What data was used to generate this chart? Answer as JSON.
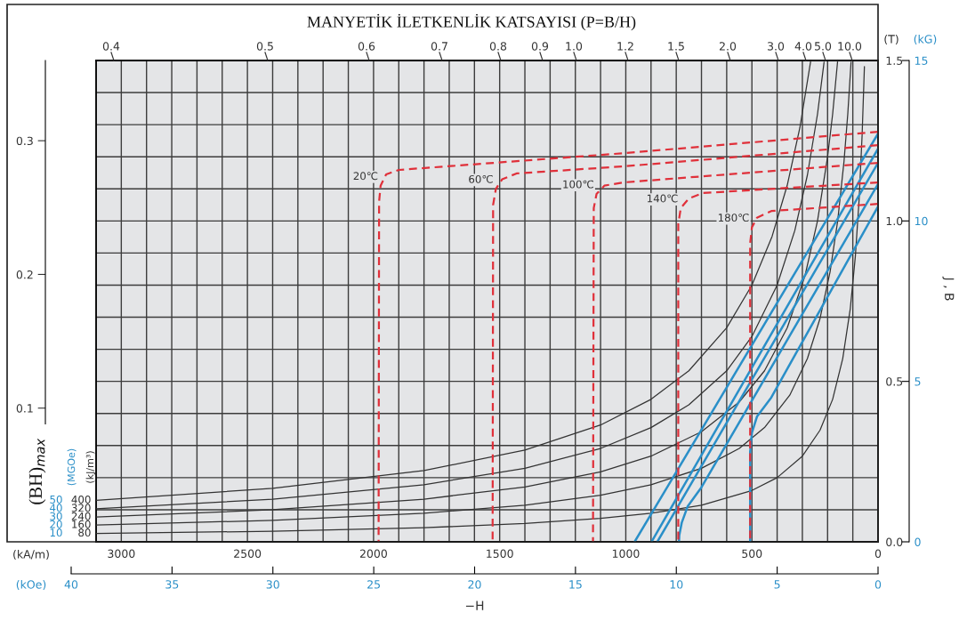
{
  "chart_data": {
    "type": "line",
    "title": "MANYETİK İLETKENLİK KATSAYISI (P=B/H)",
    "xlabel": "−H",
    "y2label": "J , B",
    "x2label": "(kOe)",
    "annotations": [
      "(kA/m)",
      "(T)",
      "(BH)$_{max}$",
      "(MGOe)",
      "(kJ/m³)",
      "(kG)",
      "50",
      "40",
      "30",
      "20",
      "10",
      "0.4",
      "0.5",
      "0.6",
      "0.7",
      "0.8",
      "0.9",
      "1.0",
      "1.2",
      "1.5",
      "2.0",
      "3.0",
      "4.0",
      "5.0",
      "10.0"
    ],
    "xlim": [
      3100,
      0
    ],
    "xticks": [
      {
        "value": 3100,
        "label": null
      },
      3000,
      {
        "value": 2900,
        "label": null
      },
      {
        "value": 2800,
        "label": null
      },
      {
        "value": 2700,
        "label": null
      },
      {
        "value": 2600,
        "label": null
      },
      2500,
      {
        "value": 2400,
        "label": null
      },
      {
        "value": 2300,
        "label": null
      },
      {
        "value": 2200,
        "label": null
      },
      {
        "value": 2100,
        "label": null
      },
      2000,
      {
        "value": 1900,
        "label": null
      },
      {
        "value": 1800,
        "label": null
      },
      {
        "value": 1700,
        "label": null
      },
      {
        "value": 1600,
        "label": null
      },
      1500,
      {
        "value": 1400,
        "label": null
      },
      {
        "value": 1300,
        "label": null
      },
      {
        "value": 1200,
        "label": null
      },
      {
        "value": 1100,
        "label": null
      },
      1000,
      {
        "value": 900,
        "label": null
      },
      {
        "value": 800,
        "label": null
      },
      {
        "value": 700,
        "label": null
      },
      {
        "value": 600,
        "label": null
      },
      500,
      {
        "value": 400,
        "label": null
      },
      {
        "value": 300,
        "label": null
      },
      {
        "value": 200,
        "label": null
      },
      {
        "value": 100,
        "label": null
      },
      0
    ],
    "ylim": [
      0,
      1.5
    ],
    "yticks": [
      {
        "value": 0,
        "label": "0.0"
      },
      {
        "value": 0.1,
        "label": null
      },
      {
        "value": 0.2,
        "label": null
      },
      {
        "value": 0.3,
        "label": null
      },
      {
        "value": 0.4,
        "label": null
      },
      0.5,
      {
        "value": 0.6,
        "label": null
      },
      {
        "value": 0.7,
        "label": null
      },
      {
        "value": 0.8,
        "label": null
      },
      {
        "value": 0.9,
        "label": null
      },
      {
        "value": 1,
        "label": "1.0"
      },
      {
        "value": 1.1,
        "label": null
      },
      {
        "value": 1.2,
        "label": null
      },
      {
        "value": 1.3,
        "label": null
      },
      {
        "value": 1.4,
        "label": null
      },
      1.5
    ],
    "y2lim": [
      0,
      15
    ],
    "y2ticks": [
      0,
      5,
      10,
      15
    ],
    "y3lim": [
      0,
      0.36
    ],
    "y3ticks": [
      0.1,
      0.2,
      0.3
    ],
    "x2lim": [
      40,
      0
    ],
    "x2ticks": [
      40,
      35,
      30,
      25,
      20,
      15,
      10,
      5,
      0
    ],
    "grid": true,
    "line_style": "solid",
    "series": [
      {
        "name": "400",
        "color": "#333333",
        "x": [
          3100,
          2400,
          1800,
          1400,
          1100,
          900,
          750,
          600,
          500,
          420,
          360,
          310,
          267
        ],
        "values": [
          0.129,
          0.167,
          0.222,
          0.286,
          0.364,
          0.444,
          0.533,
          0.667,
          0.8,
          0.952,
          1.111,
          1.29,
          1.498
        ]
      },
      {
        "name": "320",
        "color": "#333333",
        "x": [
          3100,
          2400,
          1800,
          1400,
          1100,
          900,
          750,
          600,
          500,
          400,
          330,
          280,
          240,
          214
        ],
        "values": [
          0.103,
          0.133,
          0.178,
          0.229,
          0.291,
          0.356,
          0.427,
          0.533,
          0.64,
          0.8,
          0.97,
          1.143,
          1.333,
          1.495
        ]
      },
      {
        "name": "240",
        "color": "#333333",
        "x": [
          3100,
          2400,
          1800,
          1400,
          1100,
          900,
          700,
          550,
          450,
          360,
          290,
          240,
          200,
          180,
          160
        ],
        "values": [
          0.077,
          0.1,
          0.133,
          0.171,
          0.218,
          0.267,
          0.343,
          0.436,
          0.533,
          0.667,
          0.828,
          1.0,
          1.2,
          1.333,
          1.5
        ]
      },
      {
        "name": "160",
        "color": "#333333",
        "x": [
          3100,
          2400,
          1800,
          1400,
          1100,
          900,
          700,
          550,
          450,
          350,
          280,
          230,
          190,
          160,
          135,
          120,
          107
        ],
        "values": [
          0.052,
          0.067,
          0.089,
          0.114,
          0.145,
          0.178,
          0.229,
          0.291,
          0.356,
          0.457,
          0.571,
          0.696,
          0.842,
          1.0,
          1.185,
          1.333,
          1.495
        ]
      },
      {
        "name": "80",
        "color": "#333333",
        "x": [
          3100,
          2400,
          1800,
          1400,
          1100,
          900,
          700,
          500,
          400,
          300,
          230,
          180,
          140,
          110,
          90,
          75,
          63,
          54
        ],
        "values": [
          0.026,
          0.033,
          0.044,
          0.057,
          0.073,
          0.089,
          0.114,
          0.16,
          0.2,
          0.267,
          0.348,
          0.444,
          0.571,
          0.727,
          0.889,
          1.067,
          1.27,
          1.481
        ]
      },
      {
        "color": "#2a8fc8",
        "x": [
          0,
          965
        ],
        "values": [
          1.272,
          0
        ]
      },
      {
        "color": "#2a8fc8",
        "x": [
          0,
          898
        ],
        "values": [
          1.225,
          0
        ]
      },
      {
        "color": "#2a8fc8",
        "x": [
          0,
          875
        ],
        "values": [
          1.181,
          0
        ]
      },
      {
        "color": "#2a8fc8",
        "x": [
          0,
          700,
          755,
          778,
          788,
          789
        ],
        "values": [
          1.115,
          0.17,
          0.11,
          0.06,
          0.02,
          0
        ]
      },
      {
        "color": "#2a8fc8",
        "x": [
          0,
          423,
          480,
          500,
          507,
          507
        ],
        "values": [
          1.045,
          0.45,
          0.39,
          0.34,
          0.28,
          0
        ]
      },
      {
        "name": "20℃",
        "color": "#e0303a",
        "line_style": "dashed",
        "x": [
          0,
          1010,
          1900,
          1950,
          1972,
          1978,
          1980
        ],
        "values": [
          1.278,
          1.211,
          1.159,
          1.145,
          1.11,
          1.06,
          0
        ]
      },
      {
        "name": "60℃",
        "color": "#e0303a",
        "line_style": "dashed",
        "x": [
          0,
          1010,
          1433,
          1490,
          1515,
          1526,
          1528
        ],
        "values": [
          1.236,
          1.17,
          1.148,
          1.13,
          1.1,
          1.05,
          0
        ]
      },
      {
        "name": "100℃",
        "color": "#e0303a",
        "line_style": "dashed",
        "x": [
          0,
          1010,
          1085,
          1116,
          1127,
          1130
        ],
        "values": [
          1.181,
          1.12,
          1.11,
          1.084,
          1.04,
          0
        ]
      },
      {
        "name": "140℃",
        "color": "#e0303a",
        "line_style": "dashed",
        "x": [
          0,
          694,
          750,
          782,
          792,
          792
        ],
        "values": [
          1.12,
          1.087,
          1.07,
          1.04,
          0.99,
          0
        ]
      },
      {
        "name": "180℃",
        "color": "#e0303a",
        "line_style": "dashed",
        "x": [
          0,
          423,
          480,
          500,
          507,
          507
        ],
        "values": [
          1.053,
          1.031,
          1.01,
          0.98,
          0.93,
          0
        ]
      }
    ]
  }
}
